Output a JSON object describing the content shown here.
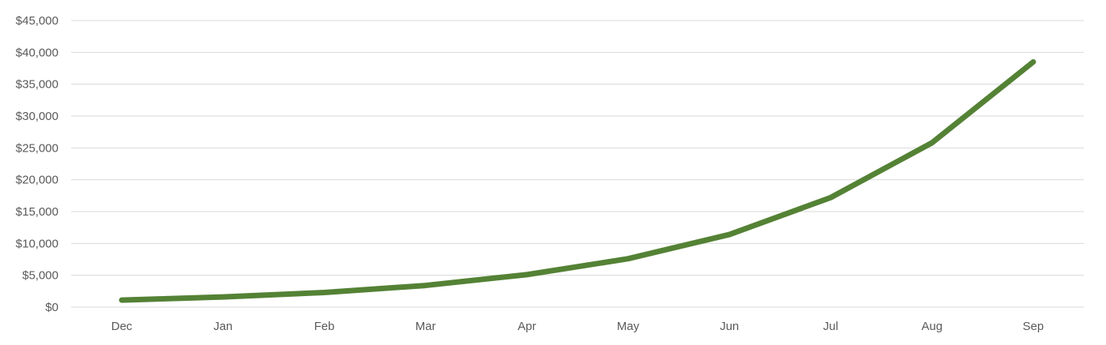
{
  "chart_data": {
    "type": "line",
    "title": "",
    "xlabel": "",
    "ylabel": "",
    "categories": [
      "Dec",
      "Jan",
      "Feb",
      "Mar",
      "Apr",
      "May",
      "Jun",
      "Jul",
      "Aug",
      "Sep"
    ],
    "series": [
      {
        "values": [
          1100,
          1600,
          2300,
          3400,
          5100,
          7600,
          11400,
          17200,
          25800,
          38500
        ],
        "color": "#548235"
      }
    ],
    "ylim": [
      0,
      45000
    ],
    "y_ticks": [
      0,
      5000,
      10000,
      15000,
      20000,
      25000,
      30000,
      35000,
      40000,
      45000
    ],
    "y_tick_labels": [
      "$0",
      "$5,000",
      "$10,000",
      "$15,000",
      "$20,000",
      "$25,000",
      "$30,000",
      "$35,000",
      "$40,000",
      "$45,000"
    ],
    "grid": "horizontal",
    "legend": "none",
    "gridline_color": "#d9d9d9",
    "tick_label_color": "#595959"
  }
}
